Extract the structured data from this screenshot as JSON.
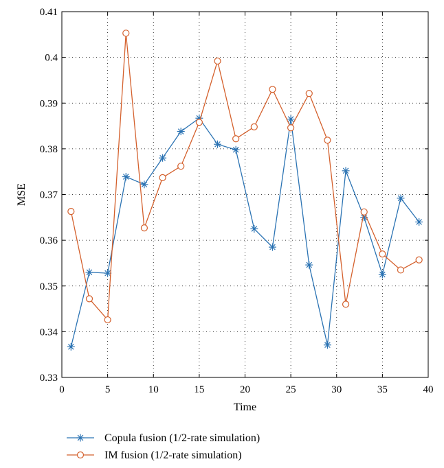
{
  "chart_data": {
    "type": "line",
    "title": "",
    "xlabel": "Time",
    "ylabel": "MSE",
    "xlim": [
      0,
      40
    ],
    "ylim": [
      0.33,
      0.41
    ],
    "xticks": [
      "0",
      "5",
      "10",
      "15",
      "20",
      "25",
      "30",
      "35",
      "40"
    ],
    "yticks": [
      "0.33",
      "0.34",
      "0.35",
      "0.36",
      "0.37",
      "0.38",
      "0.39",
      "0.4",
      "0.41"
    ],
    "grid": true,
    "legend_position": "bottom",
    "x": [
      1,
      3,
      5,
      7,
      9,
      11,
      13,
      15,
      17,
      19,
      21,
      23,
      25,
      27,
      29,
      31,
      33,
      35,
      37,
      39
    ],
    "series": [
      {
        "name": "Copula fusion (1/2-rate simulation)",
        "color": "#2b73b3",
        "marker": "asterisk",
        "values": [
          0.3367,
          0.353,
          0.3528,
          0.3739,
          0.3722,
          0.378,
          0.3838,
          0.3867,
          0.381,
          0.3798,
          0.3625,
          0.3585,
          0.3865,
          0.3546,
          0.3371,
          0.3752,
          0.365,
          0.3525,
          0.3692,
          0.364
        ]
      },
      {
        "name": "IM fusion (1/2-rate simulation)",
        "color": "#d4602c",
        "marker": "circle",
        "values": [
          0.3663,
          0.3472,
          0.3426,
          0.4053,
          0.3627,
          0.3737,
          0.3762,
          0.3858,
          0.3992,
          0.3822,
          0.3848,
          0.393,
          0.3846,
          0.3921,
          0.3819,
          0.346,
          0.3662,
          0.357,
          0.3535,
          0.3557
        ]
      }
    ]
  }
}
